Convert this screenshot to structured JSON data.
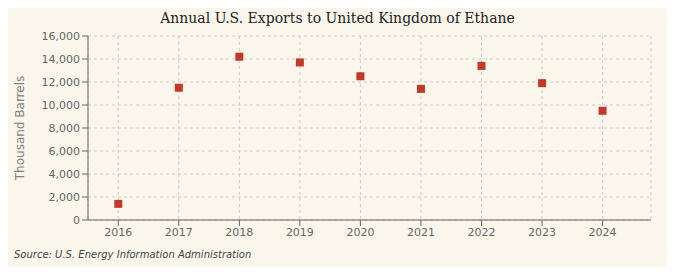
{
  "chart_data": {
    "type": "scatter",
    "title": "Annual U.S. Exports to United Kingdom of Ethane",
    "y_label": "Thousand Barrels",
    "annotations": [
      "Source: U.S. Energy Information Administration"
    ],
    "x": [
      2016,
      2017,
      2018,
      2019,
      2020,
      2021,
      2022,
      2023,
      2024
    ],
    "values": [
      1400,
      11500,
      14200,
      13700,
      12500,
      11400,
      13400,
      11900,
      9500
    ],
    "color": "#c0392b",
    "marker": "square",
    "xlim": [
      2015.5,
      2024.8
    ],
    "xticks": [
      2016,
      2017,
      2018,
      2019,
      2020,
      2021,
      2022,
      2023,
      2024
    ],
    "ylim": [
      0,
      16000
    ],
    "yticks": [
      0,
      {
        "value": 2000,
        "label": "2,000"
      },
      {
        "value": 4000,
        "label": "4,000"
      },
      {
        "value": 6000,
        "label": "6,000"
      },
      {
        "value": 8000,
        "label": "8,000"
      },
      {
        "value": 10000,
        "label": "10,000"
      },
      {
        "value": 12000,
        "label": "12,000"
      },
      {
        "value": 14000,
        "label": "14,000"
      },
      {
        "value": 16000,
        "label": "16,000"
      }
    ],
    "grid": true
  }
}
